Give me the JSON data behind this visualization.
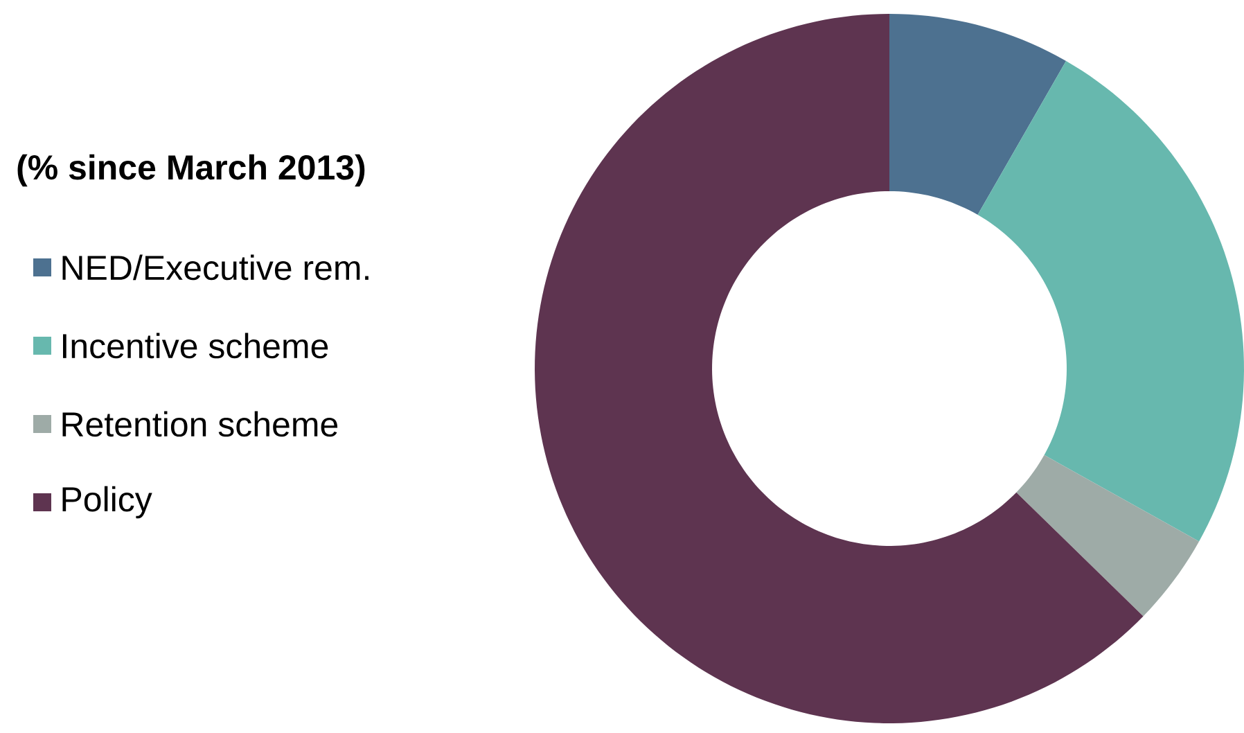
{
  "chart_data": {
    "type": "donut",
    "title": "(% since March 2013)",
    "categories": [
      "NED/Executive rem.",
      "Incentive scheme",
      "Retention scheme",
      "Policy"
    ],
    "values": [
      8.3,
      24.8,
      4.2,
      62.7
    ],
    "colors": [
      "#4d7190",
      "#67b8ae",
      "#9eaba7",
      "#5e3450"
    ],
    "legend": "left"
  }
}
